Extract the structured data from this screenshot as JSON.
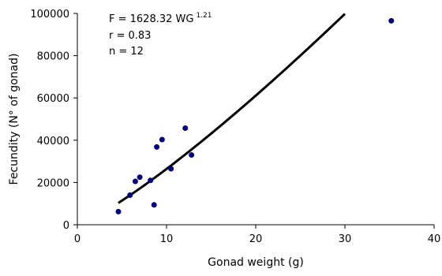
{
  "chart_data": {
    "type": "scatter",
    "xlabel": "Gonad weight (g)",
    "ylabel": "Fecundity (N° of gonad)",
    "xlim": [
      0,
      40
    ],
    "ylim": [
      0,
      100000
    ],
    "x_ticks": [
      0,
      10,
      20,
      30,
      40
    ],
    "y_ticks": [
      0,
      20000,
      40000,
      60000,
      80000,
      100000
    ],
    "x_tick_labels": [
      "0",
      "10",
      "20",
      "30",
      "40"
    ],
    "y_tick_labels": [
      "0",
      "20000",
      "40000",
      "60000",
      "80000",
      "100000"
    ],
    "grid": false,
    "legend": "none",
    "series": [
      {
        "type": "scatter",
        "marker_color": "#00007f",
        "points": [
          {
            "x": 4.6,
            "y": 6200
          },
          {
            "x": 5.9,
            "y": 14000
          },
          {
            "x": 6.5,
            "y": 20500
          },
          {
            "x": 7.0,
            "y": 22500
          },
          {
            "x": 8.2,
            "y": 21000
          },
          {
            "x": 8.6,
            "y": 9400
          },
          {
            "x": 8.9,
            "y": 36800
          },
          {
            "x": 9.5,
            "y": 40300
          },
          {
            "x": 10.5,
            "y": 26500
          },
          {
            "x": 12.1,
            "y": 45700
          },
          {
            "x": 12.8,
            "y": 33000
          },
          {
            "x": 35.2,
            "y": 96500
          }
        ]
      },
      {
        "type": "line",
        "line_color": "#000000",
        "fit": "power",
        "equation": {
          "coefficient": 1628.32,
          "exponent": 1.21
        },
        "x_range": [
          4.6,
          30
        ]
      }
    ],
    "annotations": {
      "equation_text": "F = 1628.32 WG",
      "equation_exponent": "1.21",
      "r_text": "r = 0.83",
      "n_text": "n = 12"
    }
  }
}
